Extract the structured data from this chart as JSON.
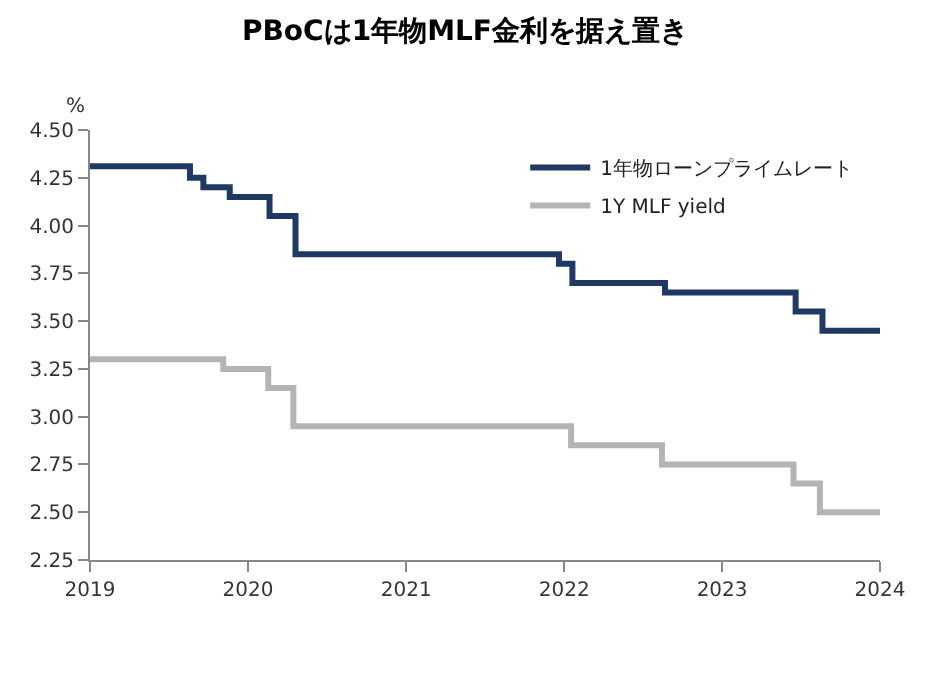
{
  "chart_data": {
    "type": "step",
    "title": "PBoCは1年物MLF金利を据え置き",
    "ylabel": "%",
    "series": [
      {
        "name": "1年物ローンプライムレート",
        "color": "#1f3864",
        "x": [
          "2019-01",
          "2019-08-20",
          "2019-09-20",
          "2019-11-20",
          "2020-02-20",
          "2020-04-20",
          "2021-12-20",
          "2022-01-20",
          "2022-08-22",
          "2023-06-20",
          "2023-08-21",
          "2024-01"
        ],
        "values": [
          4.31,
          4.25,
          4.2,
          4.15,
          4.05,
          3.85,
          3.8,
          3.7,
          3.65,
          3.55,
          3.45,
          3.45
        ]
      },
      {
        "name": "1Y MLF yield",
        "color": "#b4b4b4",
        "x": [
          "2019-01",
          "2019-11-05",
          "2020-02-17",
          "2020-04-15",
          "2022-01-17",
          "2022-08-15",
          "2023-06-15",
          "2023-08-15",
          "2024-01"
        ],
        "values": [
          3.3,
          3.25,
          3.15,
          2.95,
          2.85,
          2.75,
          2.65,
          2.5,
          2.5
        ]
      }
    ],
    "xlim": [
      "2019",
      "2024-01"
    ],
    "xticks": [
      {
        "value": "2019",
        "label": "2019"
      },
      {
        "value": "2020",
        "label": "2020"
      },
      {
        "value": "2021",
        "label": "2021"
      },
      {
        "value": "2022",
        "label": "2022"
      },
      {
        "value": "2023",
        "label": "2023"
      },
      {
        "value": "2024",
        "label": "2024"
      }
    ],
    "ylim": [
      2.25,
      4.5
    ],
    "yticks": [
      2.25,
      {
        "value": 2.5,
        "label": "2.50"
      },
      2.75,
      {
        "value": 3.0,
        "label": "3.00"
      },
      3.25,
      {
        "value": 3.5,
        "label": "3.50"
      },
      3.75,
      {
        "value": 4.0,
        "label": "4.00"
      },
      4.25,
      {
        "value": 4.5,
        "label": "4.50"
      }
    ],
    "legend": "top right"
  }
}
